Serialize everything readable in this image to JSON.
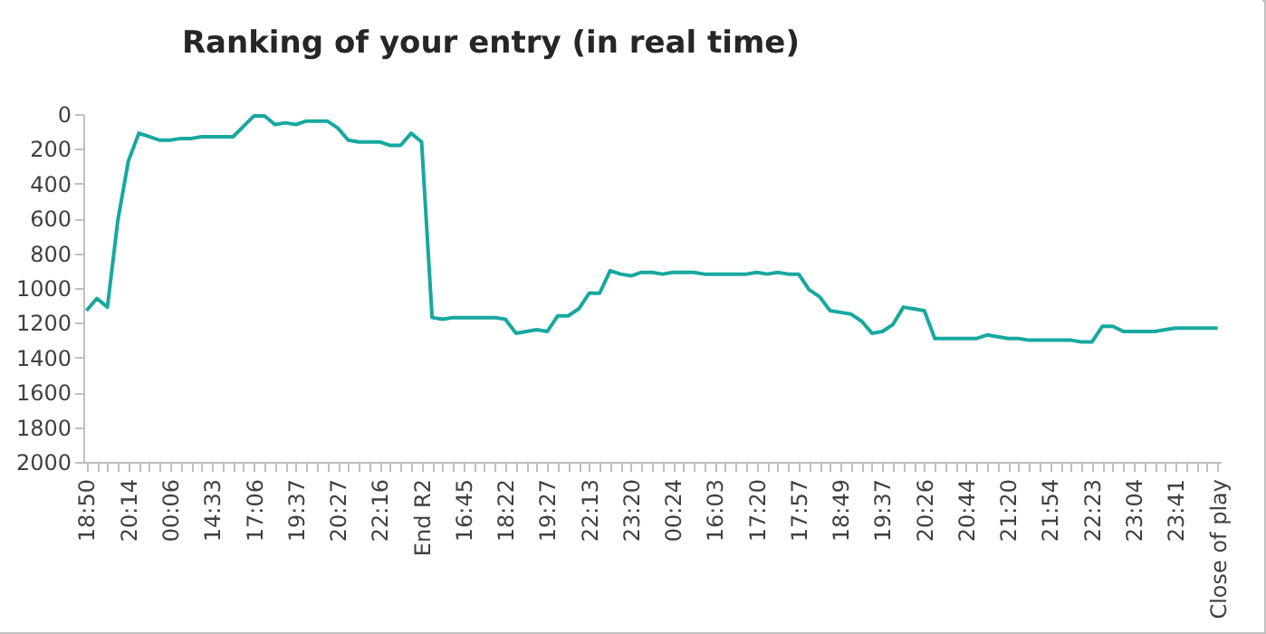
{
  "chart_data": {
    "type": "line",
    "title": "Ranking of your entry (in real time)",
    "categories": [
      "18:50",
      null,
      null,
      null,
      "20:14",
      null,
      null,
      null,
      "00:06",
      null,
      null,
      null,
      "14:33",
      null,
      null,
      null,
      "17:06",
      null,
      null,
      null,
      "19:37",
      null,
      null,
      null,
      "20:27",
      null,
      null,
      null,
      "22:16",
      null,
      null,
      null,
      "End R2",
      null,
      null,
      null,
      "16:45",
      null,
      null,
      null,
      "18:22",
      null,
      null,
      null,
      "19:27",
      null,
      null,
      null,
      "22:13",
      null,
      null,
      null,
      "23:20",
      null,
      null,
      null,
      "00:24",
      null,
      null,
      null,
      "16:03",
      null,
      null,
      null,
      "17:20",
      null,
      null,
      null,
      "17:57",
      null,
      null,
      null,
      "18:49",
      null,
      null,
      null,
      "19:37",
      null,
      null,
      null,
      "20:26",
      null,
      null,
      null,
      "20:44",
      null,
      null,
      null,
      "21:20",
      null,
      null,
      null,
      "21:54",
      null,
      null,
      null,
      "22:23",
      null,
      null,
      null,
      "23:04",
      null,
      null,
      null,
      "23:41",
      null,
      null,
      null,
      "Close of play"
    ],
    "series": [
      {
        "color": "#17a89f",
        "values": [
          1130,
          1060,
          1110,
          610,
          270,
          110,
          130,
          150,
          150,
          140,
          140,
          130,
          130,
          130,
          130,
          70,
          10,
          10,
          60,
          50,
          60,
          40,
          40,
          40,
          80,
          150,
          160,
          160,
          160,
          180,
          180,
          110,
          160,
          1170,
          1180,
          1170,
          1170,
          1170,
          1170,
          1170,
          1180,
          1260,
          1250,
          1240,
          1250,
          1160,
          1160,
          1120,
          1030,
          1030,
          900,
          920,
          930,
          910,
          910,
          920,
          910,
          910,
          910,
          920,
          920,
          920,
          920,
          920,
          910,
          920,
          910,
          920,
          920,
          1010,
          1050,
          1130,
          1140,
          1150,
          1190,
          1260,
          1250,
          1210,
          1110,
          1120,
          1130,
          1290,
          1290,
          1290,
          1290,
          1290,
          1270,
          1280,
          1290,
          1290,
          1300,
          1300,
          1300,
          1300,
          1300,
          1310,
          1310,
          1220,
          1220,
          1250,
          1250,
          1250,
          1250,
          1240,
          1230,
          1230,
          1230,
          1230,
          1230
        ]
      }
    ],
    "ylim": [
      2000,
      0
    ],
    "yticks": [
      0,
      200,
      400,
      600,
      800,
      1000,
      1200,
      1400,
      1600,
      1800,
      2000
    ],
    "grid": false,
    "marker": "none",
    "line_style": "solid"
  }
}
